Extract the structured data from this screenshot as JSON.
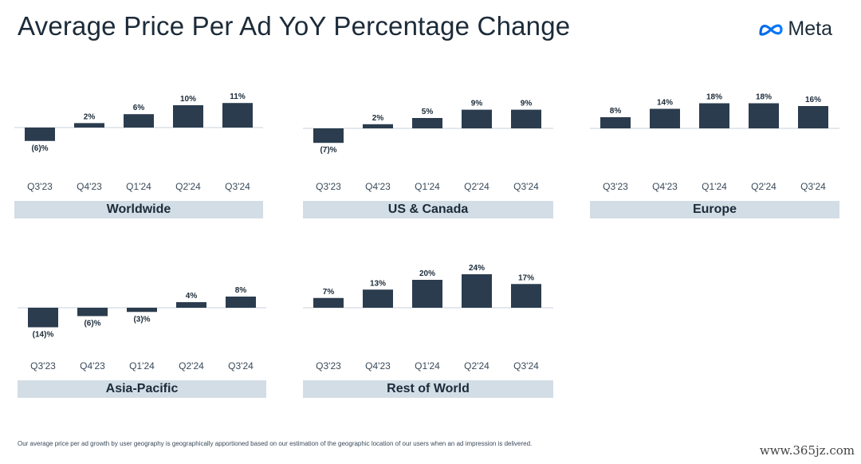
{
  "header": {
    "title": "Average Price Per Ad YoY Percentage Change",
    "logo_text": "Meta",
    "logo_icon": "meta-infinity-icon"
  },
  "footnote": "Our average price per ad growth by user geography is geographically apportioned based on our estimation of the geographic location of our users when an ad impression is delivered.",
  "watermark": "www.365jz.com",
  "colors": {
    "bar": "#2b3c4e",
    "band": "#d3dde6",
    "text": "#1c2b39",
    "baseline": "#c8d0d8"
  },
  "chart_data": [
    {
      "type": "bar",
      "title": "Worldwide",
      "categories": [
        "Q3'23",
        "Q4'23",
        "Q1'24",
        "Q2'24",
        "Q3'24"
      ],
      "values": [
        -6,
        2,
        6,
        10,
        11
      ],
      "labels": [
        "(6)%",
        "2%",
        "6%",
        "10%",
        "11%"
      ],
      "unit": "%"
    },
    {
      "type": "bar",
      "title": "US & Canada",
      "categories": [
        "Q3'23",
        "Q4'23",
        "Q1'24",
        "Q2'24",
        "Q3'24"
      ],
      "values": [
        -7,
        2,
        5,
        9,
        9
      ],
      "labels": [
        "(7)%",
        "2%",
        "5%",
        "9%",
        "9%"
      ],
      "unit": "%"
    },
    {
      "type": "bar",
      "title": "Europe",
      "categories": [
        "Q3'23",
        "Q4'23",
        "Q1'24",
        "Q2'24",
        "Q3'24"
      ],
      "values": [
        8,
        14,
        18,
        18,
        16
      ],
      "labels": [
        "8%",
        "14%",
        "18%",
        "18%",
        "16%"
      ],
      "unit": "%"
    },
    {
      "type": "bar",
      "title": "Asia-Pacific",
      "categories": [
        "Q3'23",
        "Q4'23",
        "Q1'24",
        "Q2'24",
        "Q3'24"
      ],
      "values": [
        -14,
        -6,
        -3,
        4,
        8
      ],
      "labels": [
        "(14)%",
        "(6)%",
        "(3)%",
        "4%",
        "8%"
      ],
      "unit": "%"
    },
    {
      "type": "bar",
      "title": "Rest of World",
      "categories": [
        "Q3'23",
        "Q4'23",
        "Q1'24",
        "Q2'24",
        "Q3'24"
      ],
      "values": [
        7,
        13,
        20,
        24,
        17
      ],
      "labels": [
        "7%",
        "13%",
        "20%",
        "24%",
        "17%"
      ],
      "unit": "%"
    }
  ]
}
